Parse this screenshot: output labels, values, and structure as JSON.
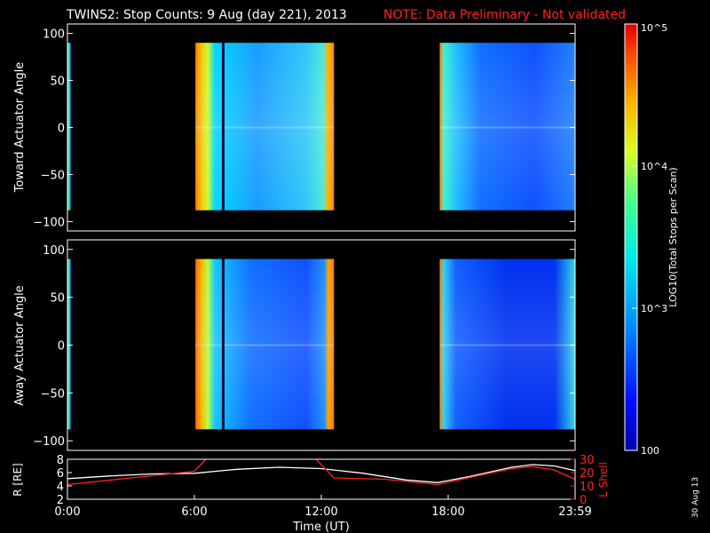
{
  "title": {
    "main": "TWINS2: Stop Counts:  9 Aug (day 221), 2013",
    "note": "NOTE: Data Preliminary - Not validated"
  },
  "footer_date": "30 Aug 13",
  "colorbar": {
    "label": "LOG10(Total Stops per Scan)",
    "ticks": [
      "10^5",
      "10^4",
      "10^3",
      "100"
    ],
    "range": [
      100,
      100000
    ],
    "scale": "log"
  },
  "chart_data": [
    {
      "type": "heatmap",
      "name": "toward",
      "ylabel": "Toward Actuator Angle",
      "xlabel": "",
      "xlim": [
        "0:00",
        "23:59"
      ],
      "ylim": [
        -110,
        110
      ],
      "yticks": [
        100,
        50,
        0,
        -50,
        -100
      ],
      "angle_range": [
        -88,
        90
      ],
      "data_blocks_ut_hours": [
        [
          0.0,
          0.15
        ],
        [
          6.05,
          12.6
        ],
        [
          17.6,
          24.0
        ]
      ],
      "description_levels_log10": {
        "block1": 3.4,
        "block2_edges": 4.2,
        "block2_body": 2.9,
        "block3_edge": 4.0,
        "block3_body": 2.4
      }
    },
    {
      "type": "heatmap",
      "name": "away",
      "ylabel": "Away Actuator Angle",
      "xlabel": "",
      "xlim": [
        "0:00",
        "23:59"
      ],
      "ylim": [
        -110,
        110
      ],
      "yticks": [
        100,
        50,
        0,
        -50,
        -100
      ],
      "angle_range": [
        -88,
        90
      ],
      "data_blocks_ut_hours": [
        [
          0.0,
          0.15
        ],
        [
          6.05,
          12.6
        ],
        [
          17.6,
          24.0
        ]
      ]
    },
    {
      "type": "line",
      "name": "orbit",
      "xlabel": "Time (UT)",
      "xticks": [
        "0:00",
        "6:00",
        "12:00",
        "18:00",
        "23:59"
      ],
      "ylabel_left": "R [RE]",
      "ylabel_right": "L Shell",
      "ylim_left": [
        2,
        8
      ],
      "yticks_left": [
        8,
        6,
        4,
        2
      ],
      "ylim_right": [
        0,
        30
      ],
      "yticks_right": [
        30,
        20,
        10,
        0
      ],
      "series": [
        {
          "name": "R [RE]",
          "color": "#ffffff",
          "axis": "left",
          "x": [
            0,
            2,
            4,
            6,
            8,
            10,
            12,
            14,
            16,
            17.5,
            19,
            21,
            22,
            23,
            24
          ],
          "values": [
            5.1,
            5.5,
            5.8,
            5.9,
            6.5,
            6.8,
            6.6,
            5.9,
            4.9,
            4.5,
            5.4,
            6.8,
            7.2,
            7.0,
            6.3
          ]
        },
        {
          "name": "L Shell",
          "color": "#ff2020",
          "axis": "right",
          "x": [
            0,
            3,
            6,
            6.6,
            11.7,
            12.6,
            15,
            17.5,
            19.5,
            21,
            22,
            23,
            24
          ],
          "values": [
            11,
            16,
            21,
            31,
            31,
            16,
            15,
            11,
            18,
            23,
            24.5,
            22,
            15
          ]
        }
      ]
    }
  ],
  "colors": {
    "background": "#000000",
    "axes": "#ffffff",
    "note": "#ff2020",
    "lshell": "#ff2020"
  }
}
